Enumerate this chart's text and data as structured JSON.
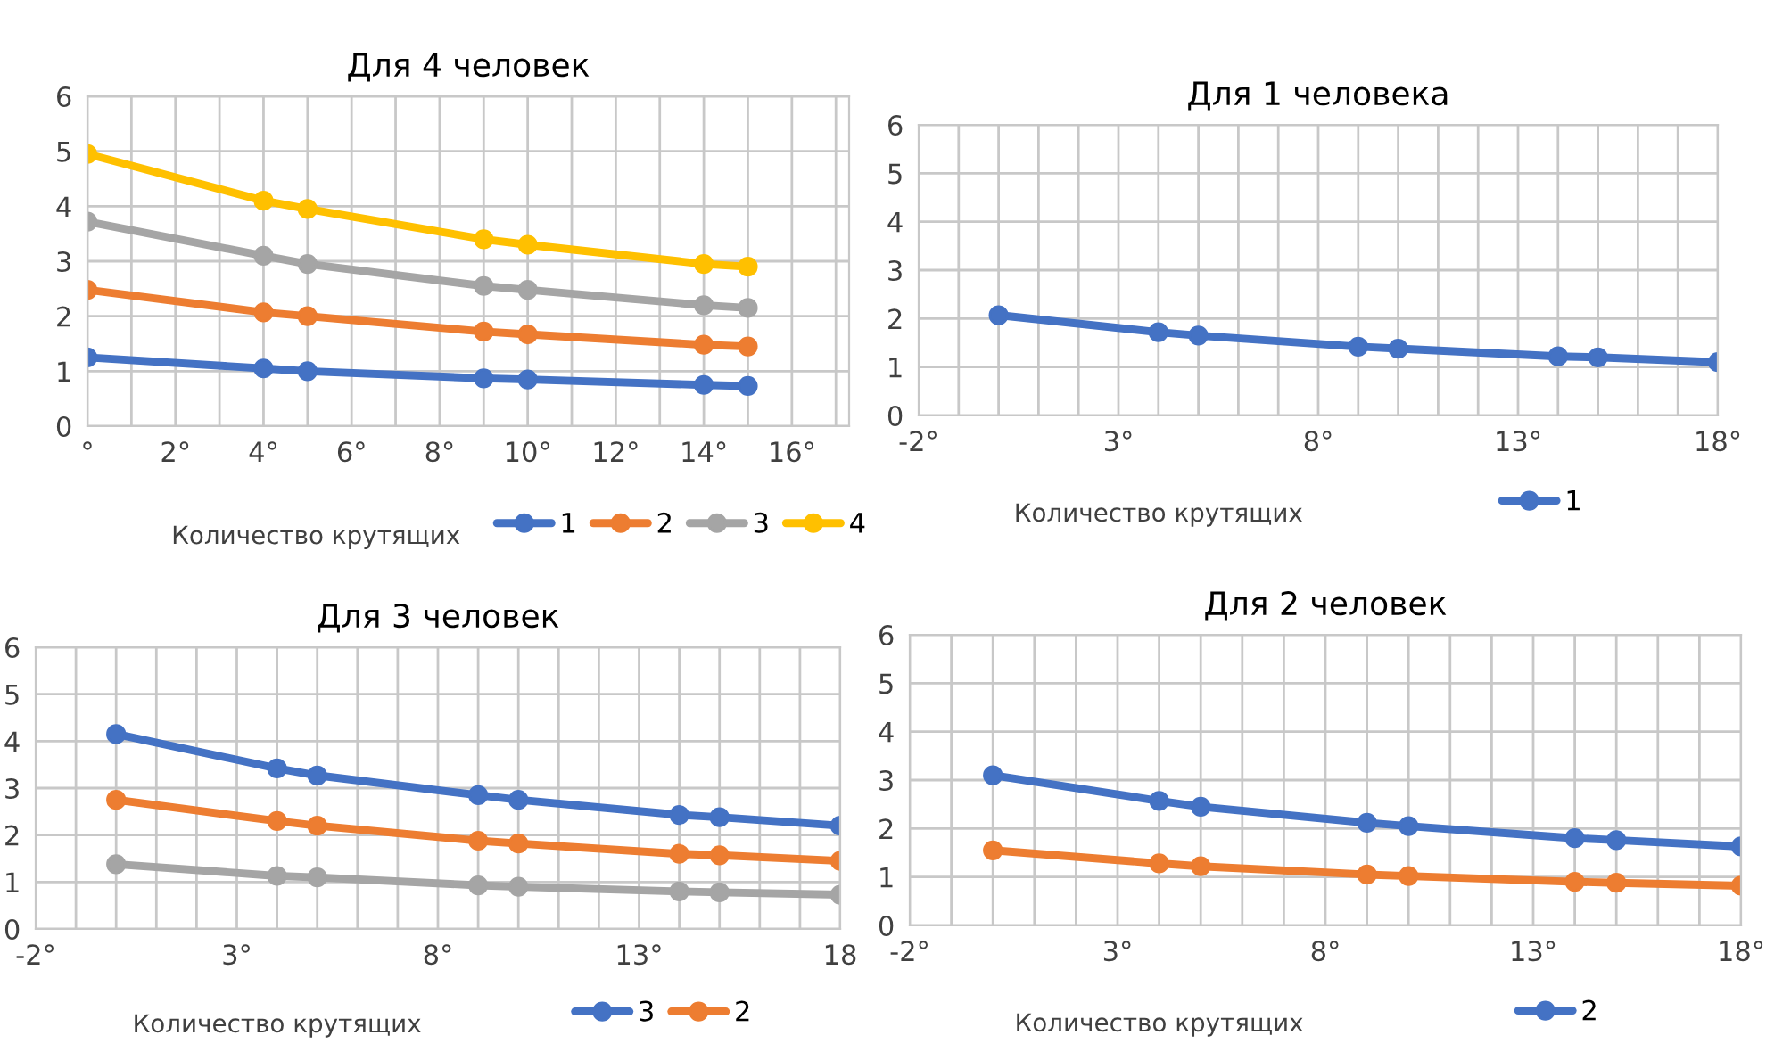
{
  "chart_data": [
    {
      "type": "line",
      "title": "Для 4 человек",
      "xlabel": "Количество крутящих",
      "x": [
        0,
        4,
        5,
        9,
        10,
        14,
        15
      ],
      "xlim": [
        0,
        17.3
      ],
      "xticks": [
        {
          "value": 0,
          "label": "°"
        },
        {
          "value": 1,
          "label": null
        },
        {
          "value": 2,
          "label": "2°"
        },
        {
          "value": 3,
          "label": null
        },
        {
          "value": 4,
          "label": "4°"
        },
        {
          "value": 5,
          "label": null
        },
        {
          "value": 6,
          "label": "6°"
        },
        {
          "value": 7,
          "label": null
        },
        {
          "value": 8,
          "label": "8°"
        },
        {
          "value": 9,
          "label": null
        },
        {
          "value": 10,
          "label": "10°"
        },
        {
          "value": 11,
          "label": null
        },
        {
          "value": 12,
          "label": "12°"
        },
        {
          "value": 13,
          "label": null
        },
        {
          "value": 14,
          "label": "14°"
        },
        {
          "value": 15,
          "label": null
        },
        {
          "value": 16,
          "label": "16°"
        },
        {
          "value": 17,
          "label": null
        }
      ],
      "ylim": [
        0,
        6
      ],
      "yticks": [
        0,
        1,
        2,
        3,
        4,
        5,
        6
      ],
      "grid": true,
      "legend": "bottom",
      "marker": "circle",
      "line_style": "solid",
      "series": [
        {
          "name": "1",
          "color": "#4472c4",
          "values": [
            1.25,
            1.05,
            1.0,
            0.87,
            0.85,
            0.75,
            0.73
          ]
        },
        {
          "name": "2",
          "color": "#ed7d31",
          "values": [
            2.48,
            2.07,
            2.0,
            1.72,
            1.67,
            1.48,
            1.45
          ]
        },
        {
          "name": "3",
          "color": "#a5a5a5",
          "values": [
            3.72,
            3.1,
            2.95,
            2.55,
            2.48,
            2.2,
            2.15
          ]
        },
        {
          "name": "4",
          "color": "#ffc000",
          "values": [
            4.95,
            4.1,
            3.95,
            3.4,
            3.3,
            2.95,
            2.9
          ]
        }
      ]
    },
    {
      "type": "line",
      "title": "Для 1 человека",
      "xlabel": "Количество крутящих",
      "x": [
        0,
        4,
        5,
        9,
        10,
        14,
        15,
        18
      ],
      "xlim": [
        -2,
        18
      ],
      "xticks": [
        {
          "value": -2,
          "label": "-2°"
        },
        {
          "value": -1,
          "label": null
        },
        {
          "value": 0,
          "label": null
        },
        {
          "value": 1,
          "label": null
        },
        {
          "value": 2,
          "label": null
        },
        {
          "value": 3,
          "label": "3°"
        },
        {
          "value": 4,
          "label": null
        },
        {
          "value": 5,
          "label": null
        },
        {
          "value": 6,
          "label": null
        },
        {
          "value": 7,
          "label": null
        },
        {
          "value": 8,
          "label": "8°"
        },
        {
          "value": 9,
          "label": null
        },
        {
          "value": 10,
          "label": null
        },
        {
          "value": 11,
          "label": null
        },
        {
          "value": 12,
          "label": null
        },
        {
          "value": 13,
          "label": "13°"
        },
        {
          "value": 14,
          "label": null
        },
        {
          "value": 15,
          "label": null
        },
        {
          "value": 16,
          "label": null
        },
        {
          "value": 17,
          "label": null
        },
        {
          "value": 18,
          "label": "18°"
        }
      ],
      "ylim": [
        0,
        6
      ],
      "yticks": [
        0,
        1,
        2,
        3,
        4,
        5,
        6
      ],
      "grid": true,
      "legend": "bottom",
      "marker": "circle",
      "line_style": "solid",
      "series": [
        {
          "name": "1",
          "color": "#4472c4",
          "values": [
            2.07,
            1.72,
            1.65,
            1.42,
            1.38,
            1.22,
            1.2,
            1.1
          ]
        }
      ]
    },
    {
      "type": "line",
      "title": "Для 3 человек",
      "xlabel": "Количество крутящих",
      "x": [
        0,
        4,
        5,
        9,
        10,
        14,
        15,
        18
      ],
      "xlim": [
        -2,
        18
      ],
      "xticks": [
        {
          "value": -2,
          "label": "-2°"
        },
        {
          "value": -1,
          "label": null
        },
        {
          "value": 0,
          "label": null
        },
        {
          "value": 1,
          "label": null
        },
        {
          "value": 2,
          "label": null
        },
        {
          "value": 3,
          "label": "3°"
        },
        {
          "value": 4,
          "label": null
        },
        {
          "value": 5,
          "label": null
        },
        {
          "value": 6,
          "label": null
        },
        {
          "value": 7,
          "label": null
        },
        {
          "value": 8,
          "label": "8°"
        },
        {
          "value": 9,
          "label": null
        },
        {
          "value": 10,
          "label": null
        },
        {
          "value": 11,
          "label": null
        },
        {
          "value": 12,
          "label": null
        },
        {
          "value": 13,
          "label": "13°"
        },
        {
          "value": 14,
          "label": null
        },
        {
          "value": 15,
          "label": null
        },
        {
          "value": 16,
          "label": null
        },
        {
          "value": 17,
          "label": null
        },
        {
          "value": 18,
          "label": "18"
        }
      ],
      "ylim": [
        0,
        6
      ],
      "yticks": [
        0,
        1,
        2,
        3,
        4,
        5,
        6
      ],
      "grid": true,
      "legend": "bottom",
      "marker": "circle",
      "line_style": "solid",
      "series": [
        {
          "name": "3",
          "color": "#4472c4",
          "values": [
            4.15,
            3.42,
            3.27,
            2.85,
            2.75,
            2.43,
            2.38,
            2.2
          ]
        },
        {
          "name": "2",
          "color": "#ed7d31",
          "values": [
            2.75,
            2.3,
            2.2,
            1.88,
            1.82,
            1.6,
            1.57,
            1.45
          ]
        },
        {
          "color": "#a5a5a5",
          "values": [
            1.38,
            1.13,
            1.1,
            0.93,
            0.9,
            0.8,
            0.78,
            0.73
          ]
        }
      ]
    },
    {
      "type": "line",
      "title": "Для 2 человек",
      "xlabel": "Количество крутящих",
      "x": [
        0,
        4,
        5,
        9,
        10,
        14,
        15,
        18
      ],
      "xlim": [
        -2,
        18
      ],
      "xticks": [
        {
          "value": -2,
          "label": "-2°"
        },
        {
          "value": -1,
          "label": null
        },
        {
          "value": 0,
          "label": null
        },
        {
          "value": 1,
          "label": null
        },
        {
          "value": 2,
          "label": null
        },
        {
          "value": 3,
          "label": "3°"
        },
        {
          "value": 4,
          "label": null
        },
        {
          "value": 5,
          "label": null
        },
        {
          "value": 6,
          "label": null
        },
        {
          "value": 7,
          "label": null
        },
        {
          "value": 8,
          "label": "8°"
        },
        {
          "value": 9,
          "label": null
        },
        {
          "value": 10,
          "label": null
        },
        {
          "value": 11,
          "label": null
        },
        {
          "value": 12,
          "label": null
        },
        {
          "value": 13,
          "label": "13°"
        },
        {
          "value": 14,
          "label": null
        },
        {
          "value": 15,
          "label": null
        },
        {
          "value": 16,
          "label": null
        },
        {
          "value": 17,
          "label": null
        },
        {
          "value": 18,
          "label": "18°"
        }
      ],
      "ylim": [
        0,
        6
      ],
      "yticks": [
        0,
        1,
        2,
        3,
        4,
        5,
        6
      ],
      "grid": true,
      "legend": "bottom",
      "marker": "circle",
      "line_style": "solid",
      "series": [
        {
          "name": "2",
          "color": "#4472c4",
          "values": [
            3.1,
            2.57,
            2.45,
            2.12,
            2.05,
            1.8,
            1.76,
            1.63
          ]
        },
        {
          "color": "#ed7d31",
          "values": [
            1.55,
            1.28,
            1.22,
            1.05,
            1.02,
            0.9,
            0.88,
            0.82
          ]
        }
      ]
    }
  ]
}
